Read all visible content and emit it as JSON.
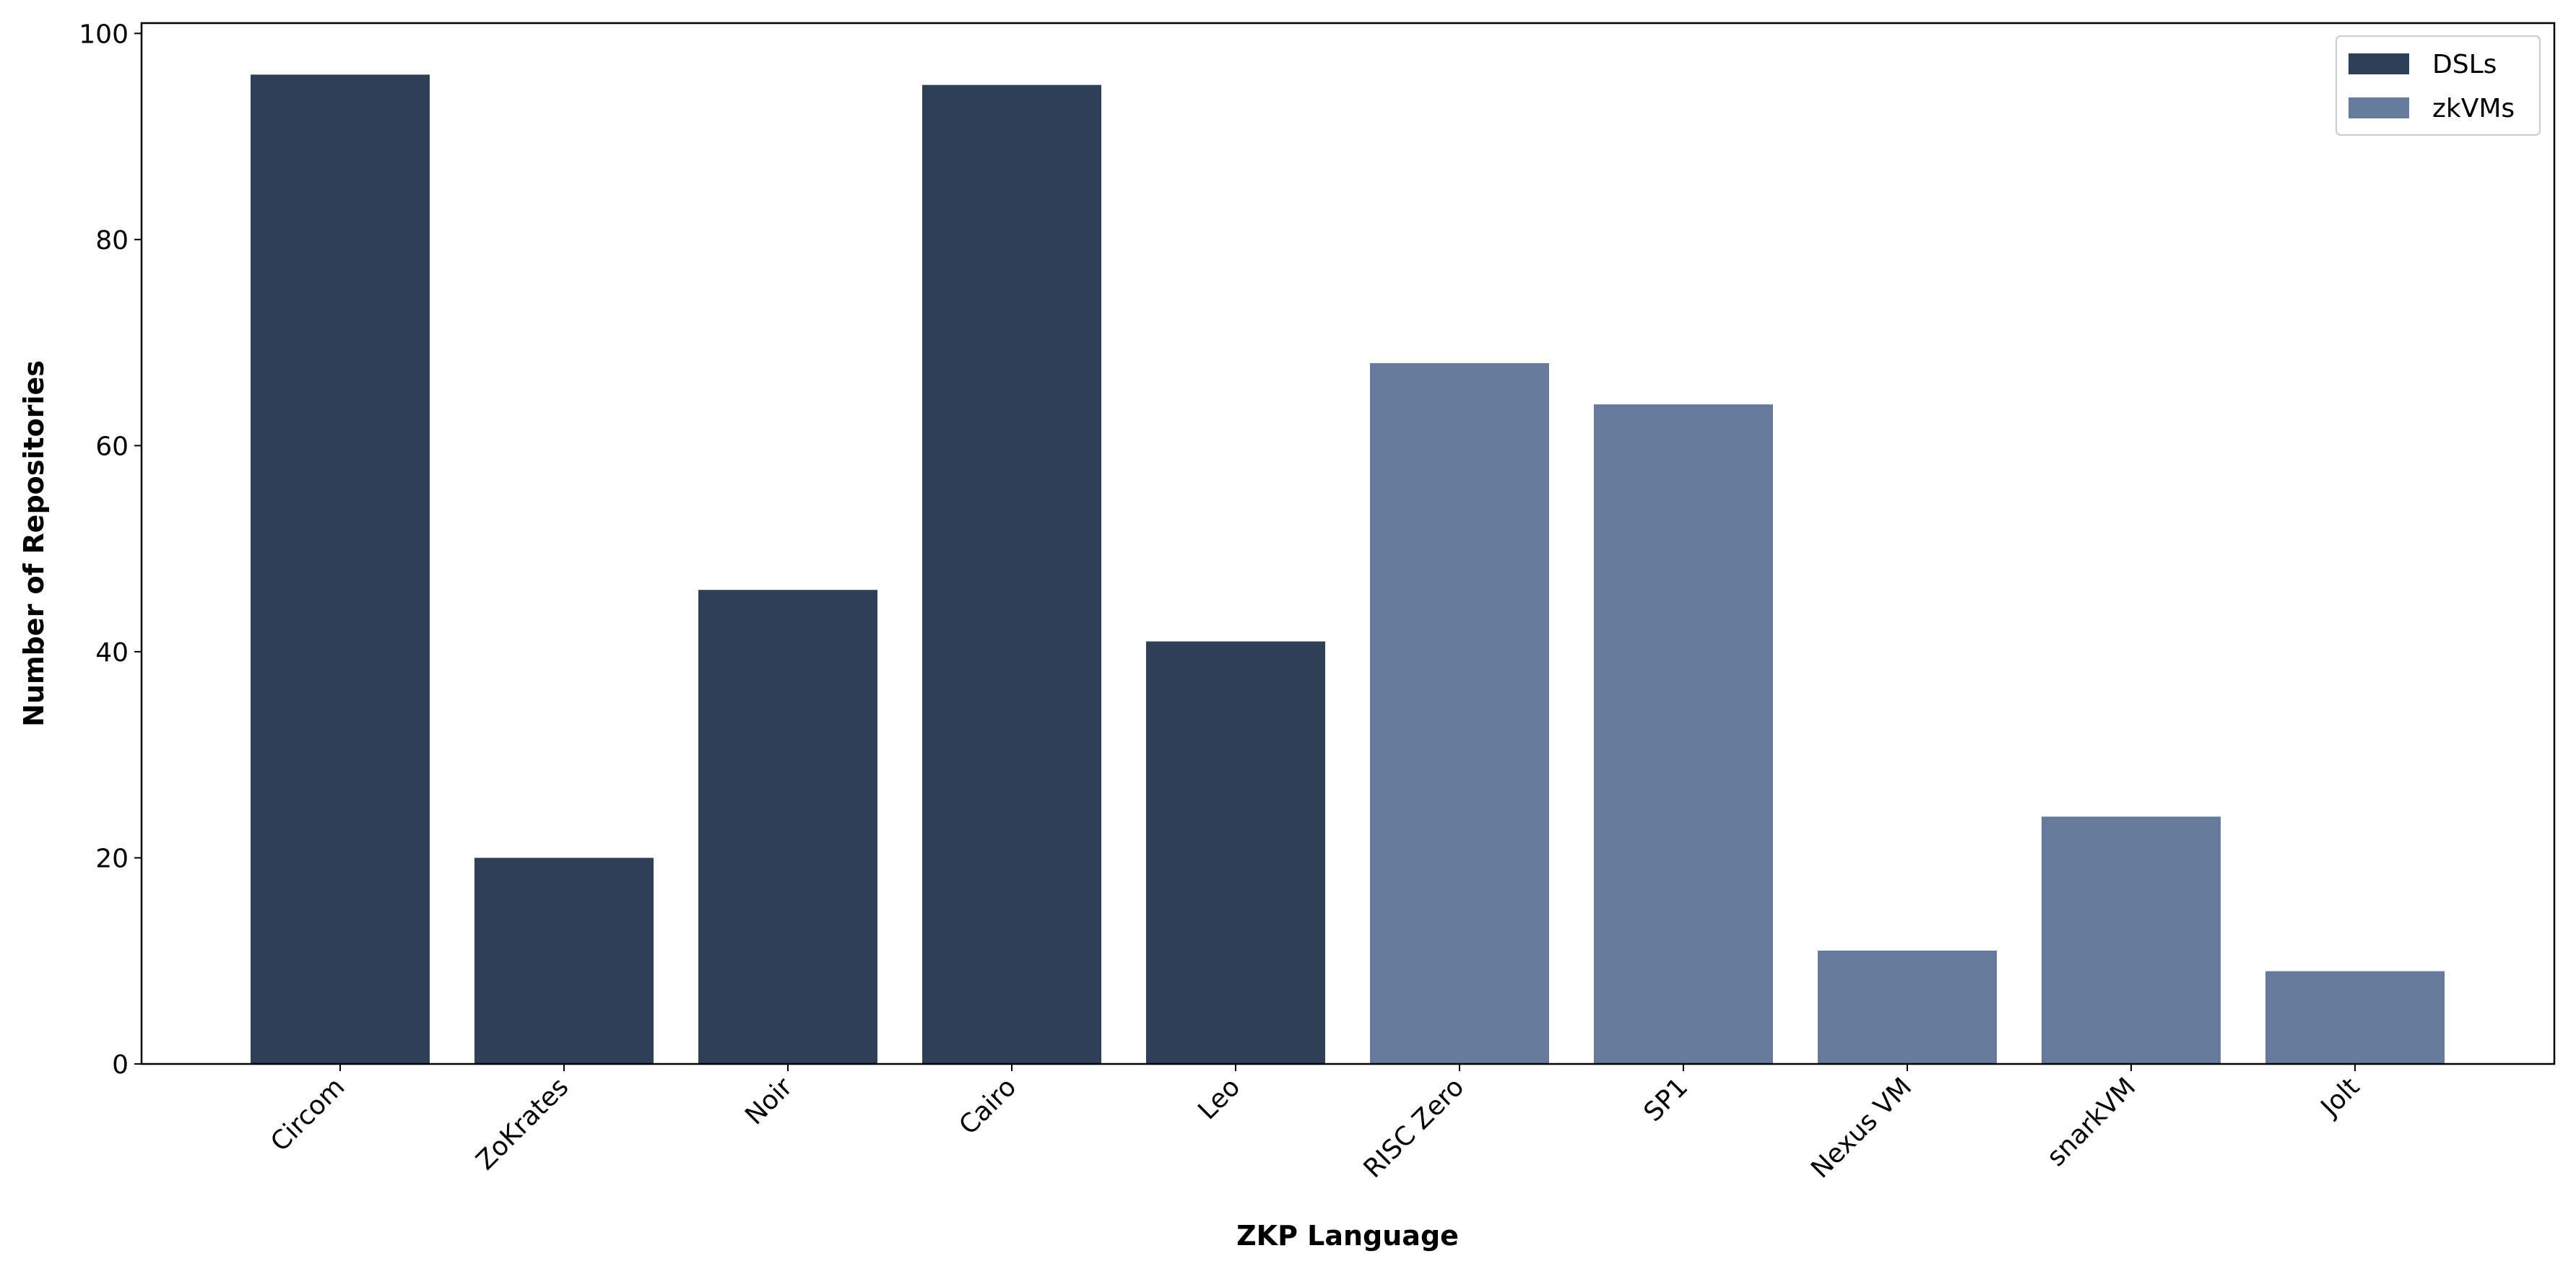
{
  "chart_data": {
    "type": "bar",
    "x_label": "ZKP Language",
    "y_label": "Number of Repositories",
    "categories": [
      "Circom",
      "ZoKrates",
      "Noir",
      "Cairo",
      "Leo",
      "RISC Zero",
      "SP1",
      "Nexus VM",
      "snarkVM",
      "Jolt"
    ],
    "series": [
      {
        "name": "DSLs",
        "color": "#2e3f57",
        "values": [
          96,
          20,
          46,
          95,
          41,
          null,
          null,
          null,
          null,
          null
        ]
      },
      {
        "name": "zkVMs",
        "color": "#667a9b",
        "values": [
          null,
          null,
          null,
          null,
          null,
          68,
          64,
          11,
          24,
          9
        ]
      }
    ],
    "ylim": [
      0,
      101
    ],
    "yticks": [
      0,
      20,
      40,
      60,
      80,
      100
    ],
    "legend": "upper right",
    "grid": false
  }
}
